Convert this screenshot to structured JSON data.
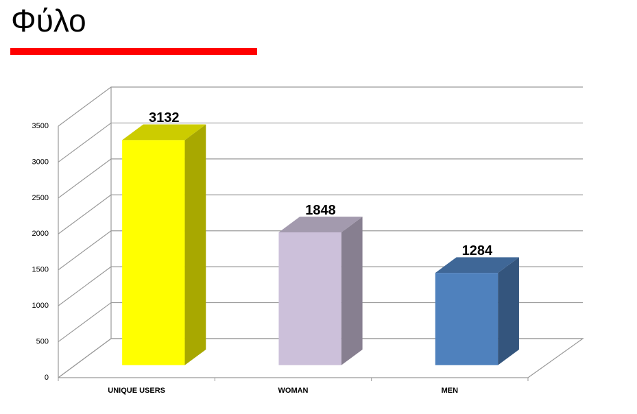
{
  "slide_title": "Φύλο",
  "chart_data": {
    "type": "bar3d",
    "categories": [
      "UNIQUE USERS",
      "WOMAN",
      "MEN"
    ],
    "values": [
      3132,
      1848,
      1284
    ],
    "colors": [
      "#ffff00",
      "#ccc0da",
      "#4f81bd"
    ],
    "ylim": [
      0,
      3500
    ],
    "yticks": [
      0,
      500,
      1000,
      1500,
      2000,
      2500,
      3000,
      3500
    ],
    "grid": true
  }
}
